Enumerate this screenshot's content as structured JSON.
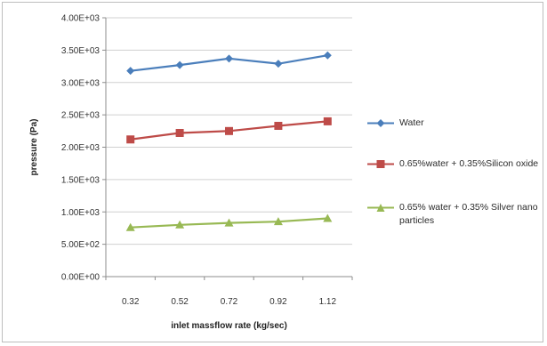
{
  "chart_data": {
    "type": "line",
    "title": "",
    "xlabel": "inlet massflow rate (kg/sec)",
    "ylabel": "pressure (Pa)",
    "categories": [
      "0.32",
      "0.52",
      "0.72",
      "0.92",
      "1.12"
    ],
    "ylim": [
      0,
      4000
    ],
    "yticks": [
      "0.00E+00",
      "5.00E+02",
      "1.00E+03",
      "1.50E+03",
      "2.00E+03",
      "2.50E+03",
      "3.00E+03",
      "3.50E+03",
      "4.00E+03"
    ],
    "grid": true,
    "legend_position": "right",
    "series": [
      {
        "name": "Water",
        "values": [
          3180,
          3270,
          3370,
          3290,
          3420
        ],
        "color": "#4a7ebb",
        "marker": "diamond"
      },
      {
        "name": "0.65%water + 0.35%Silicon oxide",
        "values": [
          2120,
          2220,
          2250,
          2330,
          2400
        ],
        "color": "#be4b48",
        "marker": "square"
      },
      {
        "name": "0.65% water + 0.35% Silver nano particles",
        "values": [
          760,
          800,
          830,
          850,
          900
        ],
        "color": "#98b954",
        "marker": "triangle"
      }
    ]
  }
}
